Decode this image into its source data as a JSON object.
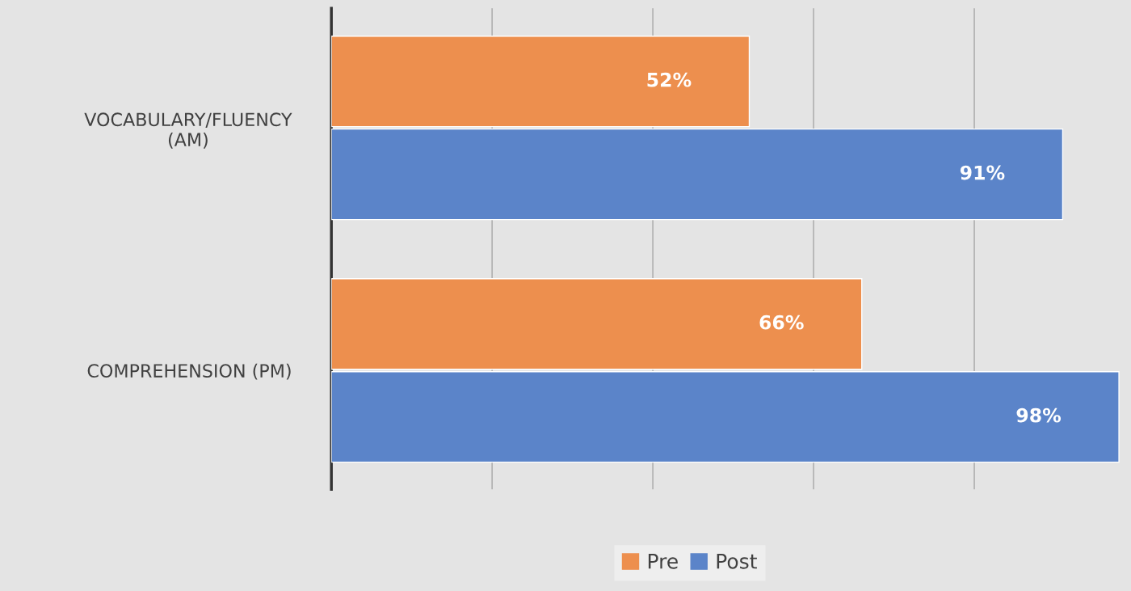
{
  "chart_data": {
    "type": "bar",
    "orientation": "horizontal",
    "categories": [
      "VOCABULARY/FLUENCY\n(AM)",
      "COMPREHENSION (PM)"
    ],
    "series": [
      {
        "name": "Pre",
        "color": "#ed8f4e",
        "values": [
          52,
          66
        ],
        "value_labels": [
          "52%",
          "66%"
        ]
      },
      {
        "name": "Post",
        "color": "#5b84c9",
        "values": [
          91,
          98
        ],
        "value_labels": [
          "91%",
          "98%"
        ]
      }
    ],
    "xlim": [
      0,
      99.5
    ],
    "xticks": [
      {
        "value": 0,
        "label": null
      },
      {
        "value": 20,
        "label": null
      },
      {
        "value": 40,
        "label": null
      },
      {
        "value": 60,
        "label": null
      },
      {
        "value": 80,
        "label": null
      }
    ],
    "tick_labels": "y",
    "grid": "x",
    "legend": "bottom"
  }
}
